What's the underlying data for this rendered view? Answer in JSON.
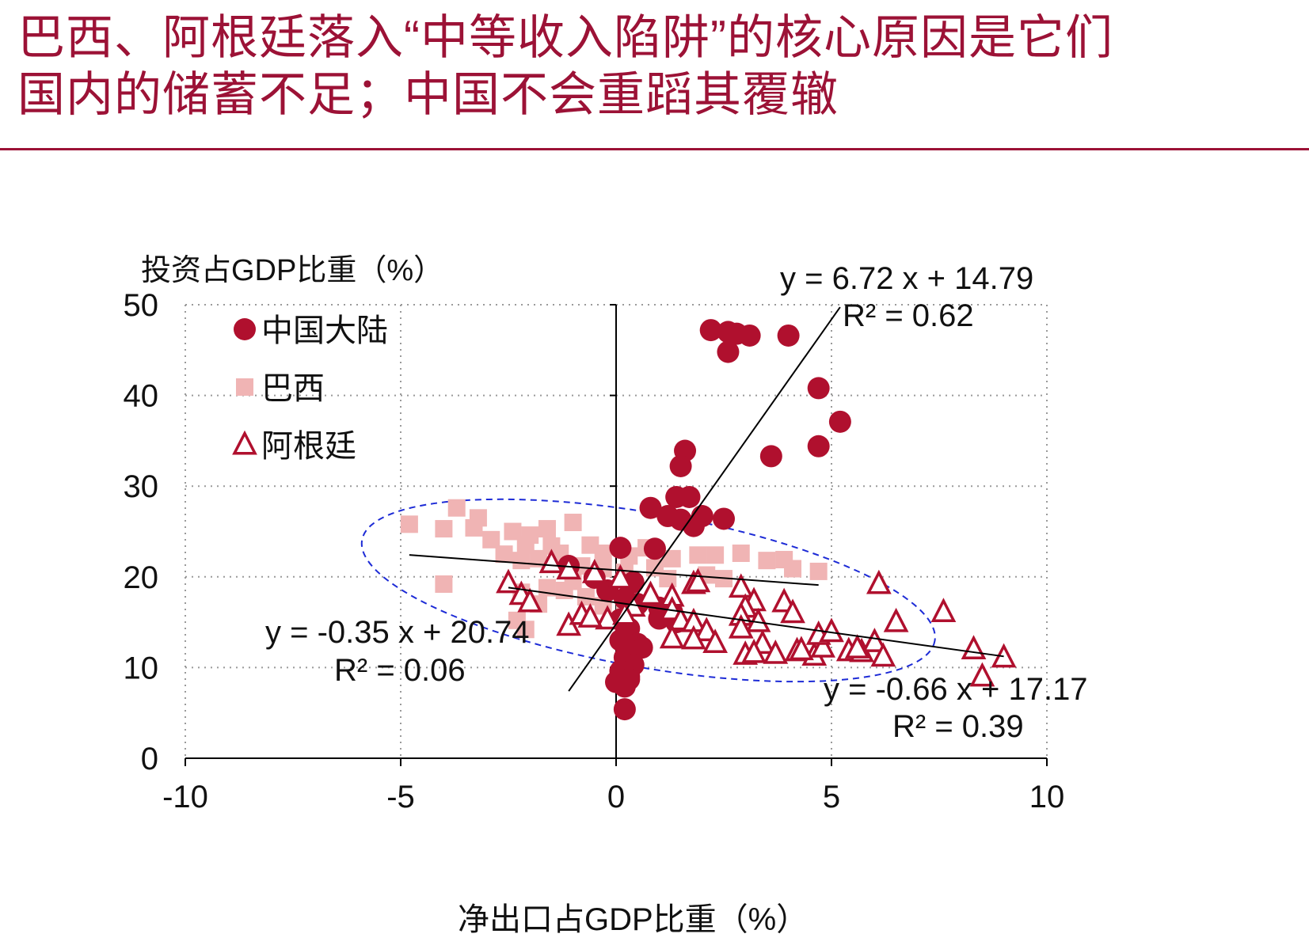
{
  "header": {
    "title_line1": "巴西、阿根廷落入“中等收入陷阱”的核心原因是它们",
    "title_line2": "国内的储蓄不足；中国不会重蹈其覆辙",
    "accent_color": "#9c1236"
  },
  "chart_data": {
    "type": "scatter",
    "xlabel": "净出口占GDP比重（%）",
    "ylabel": "投资占GDP比重（%）",
    "xlim": [
      -10,
      10
    ],
    "ylim": [
      0,
      50
    ],
    "x_ticks": [
      -10,
      -5,
      0,
      5,
      10
    ],
    "y_ticks": [
      0,
      10,
      20,
      30,
      40,
      50
    ],
    "grid": "dotted",
    "legend_position": "top-left",
    "series": [
      {
        "name": "中国大陆",
        "marker": "circle",
        "color": "#b0102e",
        "points": [
          [
            2.2,
            47.2
          ],
          [
            2.6,
            47.0
          ],
          [
            2.8,
            46.8
          ],
          [
            3.1,
            46.6
          ],
          [
            4.0,
            46.6
          ],
          [
            2.6,
            44.8
          ],
          [
            4.7,
            40.8
          ],
          [
            5.2,
            37.1
          ],
          [
            3.6,
            33.3
          ],
          [
            4.7,
            34.4
          ],
          [
            1.6,
            33.9
          ],
          [
            1.5,
            32.2
          ],
          [
            1.4,
            28.8
          ],
          [
            1.7,
            28.8
          ],
          [
            0.8,
            27.6
          ],
          [
            1.2,
            26.7
          ],
          [
            1.5,
            26.3
          ],
          [
            2.0,
            26.7
          ],
          [
            1.8,
            25.6
          ],
          [
            2.5,
            26.4
          ],
          [
            0.1,
            23.2
          ],
          [
            0.9,
            23.1
          ],
          [
            -1.1,
            21.2
          ],
          [
            -0.5,
            19.9
          ],
          [
            0.4,
            19.4
          ],
          [
            -0.2,
            18.5
          ],
          [
            0.2,
            17.6
          ],
          [
            0.5,
            17.0
          ],
          [
            1.0,
            16.6
          ],
          [
            1.3,
            16.1
          ],
          [
            1.0,
            15.4
          ],
          [
            1.4,
            15.0
          ],
          [
            0.1,
            15.3
          ],
          [
            0.3,
            14.3
          ],
          [
            0.2,
            13.5
          ],
          [
            0.1,
            13.0
          ],
          [
            0.5,
            12.6
          ],
          [
            0.6,
            12.2
          ],
          [
            0.3,
            11.9
          ],
          [
            0.2,
            11.1
          ],
          [
            0.4,
            10.3
          ],
          [
            0.1,
            9.6
          ],
          [
            0.3,
            9.0
          ],
          [
            0.0,
            8.4
          ],
          [
            0.2,
            7.9
          ],
          [
            0.3,
            8.7
          ],
          [
            0.2,
            5.4
          ]
        ]
      },
      {
        "name": "巴西",
        "marker": "square",
        "color": "#f0b4b4",
        "points": [
          [
            -4.8,
            25.8
          ],
          [
            -3.7,
            27.6
          ],
          [
            -4.0,
            25.3
          ],
          [
            -3.2,
            26.5
          ],
          [
            -3.3,
            25.4
          ],
          [
            -2.9,
            24.1
          ],
          [
            -2.4,
            25.0
          ],
          [
            -2.0,
            24.6
          ],
          [
            -1.6,
            25.3
          ],
          [
            -1.0,
            26.0
          ],
          [
            -1.5,
            23.4
          ],
          [
            -2.1,
            23.5
          ],
          [
            -2.6,
            22.5
          ],
          [
            -2.2,
            21.8
          ],
          [
            -1.8,
            22.0
          ],
          [
            -1.3,
            22.6
          ],
          [
            -0.6,
            23.5
          ],
          [
            -0.3,
            22.6
          ],
          [
            0.3,
            22.3
          ],
          [
            0.7,
            23.2
          ],
          [
            1.3,
            22.0
          ],
          [
            1.9,
            22.4
          ],
          [
            2.3,
            22.4
          ],
          [
            2.9,
            22.6
          ],
          [
            3.5,
            21.8
          ],
          [
            3.9,
            21.9
          ],
          [
            4.1,
            20.9
          ],
          [
            4.7,
            20.6
          ],
          [
            -0.8,
            21.2
          ],
          [
            -0.3,
            20.9
          ],
          [
            0.2,
            20.5
          ],
          [
            0.9,
            21.0
          ],
          [
            1.2,
            19.8
          ],
          [
            2.1,
            20.2
          ],
          [
            2.5,
            19.8
          ],
          [
            -1.0,
            19.5
          ],
          [
            -1.6,
            18.8
          ],
          [
            -2.2,
            18.3
          ],
          [
            -1.8,
            17.0
          ],
          [
            -0.7,
            17.8
          ],
          [
            -0.3,
            16.8
          ],
          [
            0.2,
            16.0
          ],
          [
            -4.0,
            19.2
          ],
          [
            -2.3,
            15.2
          ],
          [
            -2.1,
            14.2
          ],
          [
            -1.2,
            18.5
          ]
        ]
      },
      {
        "name": "阿根廷",
        "marker": "triangle",
        "color": "#b0102e",
        "points": [
          [
            -1.5,
            21.5
          ],
          [
            -1.1,
            20.8
          ],
          [
            -2.5,
            19.3
          ],
          [
            -2.2,
            18.0
          ],
          [
            -2.0,
            17.2
          ],
          [
            -0.5,
            20.4
          ],
          [
            0.1,
            19.8
          ],
          [
            0.8,
            18.0
          ],
          [
            1.3,
            17.8
          ],
          [
            1.8,
            19.2
          ],
          [
            1.9,
            19.4
          ],
          [
            2.9,
            18.8
          ],
          [
            3.2,
            17.3
          ],
          [
            3.9,
            17.2
          ],
          [
            4.1,
            16.0
          ],
          [
            3.0,
            16.6
          ],
          [
            2.9,
            15.7
          ],
          [
            3.3,
            15.0
          ],
          [
            -1.1,
            14.6
          ],
          [
            -0.8,
            15.8
          ],
          [
            -0.2,
            15.3
          ],
          [
            0.4,
            16.7
          ],
          [
            1.3,
            16.3
          ],
          [
            1.5,
            15.2
          ],
          [
            1.8,
            15.0
          ],
          [
            2.1,
            14.0
          ],
          [
            2.9,
            14.3
          ],
          [
            3.4,
            12.6
          ],
          [
            3.0,
            11.4
          ],
          [
            3.2,
            11.6
          ],
          [
            3.7,
            11.5
          ],
          [
            4.2,
            11.8
          ],
          [
            4.6,
            11.3
          ],
          [
            4.8,
            12.2
          ],
          [
            4.7,
            13.6
          ],
          [
            5.0,
            13.9
          ],
          [
            5.4,
            11.8
          ],
          [
            5.7,
            11.7
          ],
          [
            6.0,
            12.8
          ],
          [
            6.2,
            11.2
          ],
          [
            5.6,
            12.1
          ],
          [
            6.1,
            19.2
          ],
          [
            6.5,
            15.0
          ],
          [
            7.6,
            16.1
          ],
          [
            8.3,
            12.0
          ],
          [
            8.5,
            9.0
          ],
          [
            9.0,
            11.1
          ],
          [
            1.3,
            13.2
          ],
          [
            1.8,
            13.1
          ],
          [
            2.3,
            12.7
          ],
          [
            0.2,
            15.8
          ],
          [
            -0.6,
            15.5
          ],
          [
            4.3,
            11.9
          ]
        ]
      }
    ],
    "trendlines": [
      {
        "series": "中国大陆",
        "equation": "y = 6.72 x + 14.79",
        "r2": "R² = 0.62",
        "slope": 6.72,
        "intercept": 14.79,
        "x_range": [
          -1.1,
          5.2
        ]
      },
      {
        "series": "巴西",
        "equation": "y = -0.35 x + 20.74",
        "r2": "R² = 0.06",
        "slope": -0.35,
        "intercept": 20.74,
        "x_range": [
          -4.8,
          4.7
        ]
      },
      {
        "series": "阿根廷",
        "equation": "y = -0.66 x + 17.17",
        "r2": "R² = 0.39",
        "slope": -0.66,
        "intercept": 17.17,
        "x_range": [
          -2.5,
          9.0
        ]
      }
    ],
    "annotation_ellipse": {
      "center": [
        0.75,
        18.5
      ],
      "rx": 6.75,
      "ry": 8.5,
      "color": "#1d2bd6",
      "style": "dashed"
    }
  }
}
